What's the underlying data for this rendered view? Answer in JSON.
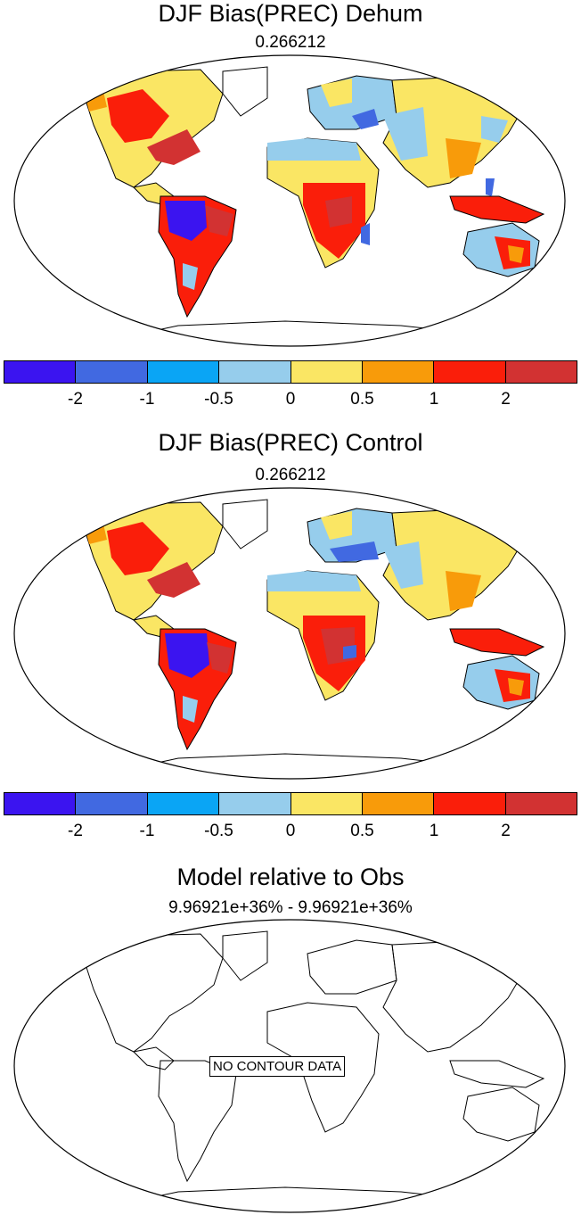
{
  "panels": [
    {
      "title": "DJF Bias(PREC) Dehum",
      "subtitle": "0.266212"
    },
    {
      "title": "DJF Bias(PREC) Control",
      "subtitle": "0.266212"
    },
    {
      "title": "Model relative to Obs",
      "subtitle": "9.96921e+36% - 9.96921e+36%",
      "message": "NO CONTOUR DATA"
    }
  ],
  "colorbar": {
    "colors": [
      "#3b14f0",
      "#4169e1",
      "#0aa5f5",
      "#96cdec",
      "#fae664",
      "#f89b0a",
      "#fa1e0a",
      "#d23232"
    ],
    "tick_labels": [
      "-2",
      "-1",
      "-0.5",
      "0",
      "0.5",
      "1",
      "2"
    ]
  },
  "legend": {
    "units": ""
  }
}
